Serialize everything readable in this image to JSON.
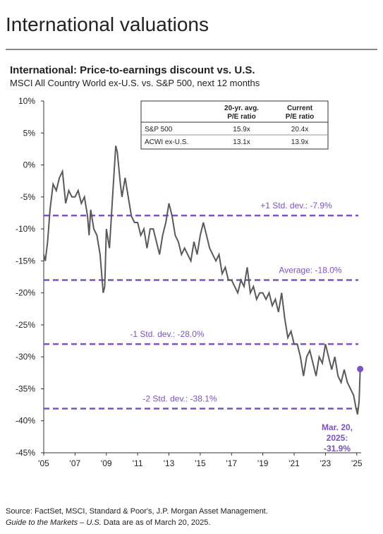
{
  "header": {
    "title": "International valuations"
  },
  "chart_data": {
    "type": "line",
    "title": "International: Price-to-earnings discount vs. U.S.",
    "subtitle": "MSCI All Country World ex-U.S. vs. S&P 500, next 12 months",
    "xlim": [
      2005,
      2025.1
    ],
    "ylim": [
      -45,
      10
    ],
    "xticks": [
      {
        "value": 2005,
        "label": "'05"
      },
      {
        "value": 2007,
        "label": "'07"
      },
      {
        "value": 2009,
        "label": "'09"
      },
      {
        "value": 2011,
        "label": "'11"
      },
      {
        "value": 2013,
        "label": "'13"
      },
      {
        "value": 2015,
        "label": "'15"
      },
      {
        "value": 2017,
        "label": "'17"
      },
      {
        "value": 2019,
        "label": "'19"
      },
      {
        "value": 2021,
        "label": "'21"
      },
      {
        "value": 2023,
        "label": "'23"
      },
      {
        "value": 2025,
        "label": "'25"
      }
    ],
    "yticks": [
      {
        "value": 10,
        "label": "10%"
      },
      {
        "value": 5,
        "label": "5%"
      },
      {
        "value": 0,
        "label": "0%"
      },
      {
        "value": -5,
        "label": "-5%"
      },
      {
        "value": -10,
        "label": "-10%"
      },
      {
        "value": -15,
        "label": "-15%"
      },
      {
        "value": -20,
        "label": "-20%"
      },
      {
        "value": -25,
        "label": "-25%"
      },
      {
        "value": -30,
        "label": "-30%"
      },
      {
        "value": -35,
        "label": "-35%"
      },
      {
        "value": -40,
        "label": "-40%"
      },
      {
        "value": -45,
        "label": "-45%"
      }
    ],
    "grid": false,
    "series": [
      {
        "color": "#595959",
        "x": [
          2005.0,
          2005.1,
          2005.25,
          2005.4,
          2005.6,
          2005.8,
          2006.0,
          2006.2,
          2006.4,
          2006.6,
          2006.8,
          2007.0,
          2007.2,
          2007.4,
          2007.6,
          2007.8,
          2007.9,
          2008.0,
          2008.2,
          2008.4,
          2008.6,
          2008.8,
          2008.9,
          2009.0,
          2009.2,
          2009.4,
          2009.6,
          2009.7,
          2009.9,
          2010.0,
          2010.2,
          2010.4,
          2010.6,
          2010.8,
          2011.0,
          2011.2,
          2011.4,
          2011.6,
          2011.8,
          2012.0,
          2012.2,
          2012.4,
          2012.6,
          2012.8,
          2013.0,
          2013.2,
          2013.4,
          2013.6,
          2013.8,
          2014.0,
          2014.2,
          2014.4,
          2014.6,
          2014.8,
          2015.0,
          2015.2,
          2015.4,
          2015.6,
          2015.8,
          2016.0,
          2016.2,
          2016.4,
          2016.6,
          2016.8,
          2017.0,
          2017.2,
          2017.4,
          2017.6,
          2017.8,
          2018.0,
          2018.2,
          2018.4,
          2018.6,
          2018.8,
          2019.0,
          2019.2,
          2019.4,
          2019.6,
          2019.8,
          2020.0,
          2020.2,
          2020.4,
          2020.6,
          2020.8,
          2021.0,
          2021.2,
          2021.4,
          2021.6,
          2021.8,
          2022.0,
          2022.2,
          2022.4,
          2022.6,
          2022.8,
          2023.0,
          2023.2,
          2023.4,
          2023.6,
          2023.8,
          2024.0,
          2024.2,
          2024.4,
          2024.6,
          2024.8,
          2024.95,
          2025.05,
          2025.15,
          2025.22
        ],
        "values": [
          -14,
          -15,
          -12,
          -7,
          -3,
          -4,
          -2,
          -1,
          -6,
          -4,
          -5,
          -5,
          -4,
          -6,
          -5,
          -8,
          -11,
          -7,
          -10,
          -11,
          -14,
          -20,
          -19,
          -10,
          -13,
          -5,
          3,
          2,
          -3,
          -5,
          -2,
          -5,
          -8,
          -9,
          -9,
          -11,
          -10,
          -13,
          -10,
          -10,
          -12,
          -14,
          -11,
          -9,
          -6,
          -8,
          -11,
          -12,
          -14,
          -13,
          -14,
          -15,
          -12,
          -14,
          -11,
          -9,
          -11,
          -13,
          -14,
          -15,
          -14,
          -17,
          -16,
          -18,
          -18,
          -19,
          -20,
          -18,
          -19,
          -16,
          -20,
          -19,
          -21,
          -20,
          -20,
          -21,
          -20,
          -22,
          -21,
          -23,
          -20,
          -24,
          -27,
          -26,
          -28,
          -28,
          -30,
          -33,
          -30,
          -29,
          -31,
          -33,
          -30,
          -31,
          -28,
          -30,
          -32,
          -30,
          -33,
          -34,
          -32,
          -34,
          -35,
          -36,
          -38,
          -39,
          -37,
          -31.9
        ]
      }
    ],
    "reference_lines": [
      {
        "value": -7.9,
        "label": "+1 Std. dev.: -7.9%",
        "color": "#7b52c7"
      },
      {
        "value": -18.0,
        "label": "Average: -18.0%",
        "color": "#7b52c7"
      },
      {
        "value": -28.0,
        "label": "-1 Std. dev.: -28.0%",
        "color": "#7b52c7"
      },
      {
        "value": -38.1,
        "label": "-2 Std. dev.: -38.1%",
        "color": "#7b52c7"
      }
    ],
    "annotation": [
      "Mar. 20,",
      "2025:",
      "-31.9%"
    ],
    "table": {
      "headers": [
        [
          "20-yr. avg.",
          "P/E ratio"
        ],
        [
          "Current",
          "P/E ratio"
        ]
      ],
      "rows": [
        [
          "S&P 500",
          "15.9x",
          "20.4x"
        ],
        [
          "ACWI ex-U.S.",
          "13.1x",
          "13.9x"
        ]
      ]
    }
  },
  "footer": {
    "source": "Source: FactSet, MSCI, Standard & Poor's, J.P. Morgan Asset Management.",
    "guide": "Guide to the Markets – U.S.",
    "asof": " Data are as of March 20, 2025."
  }
}
